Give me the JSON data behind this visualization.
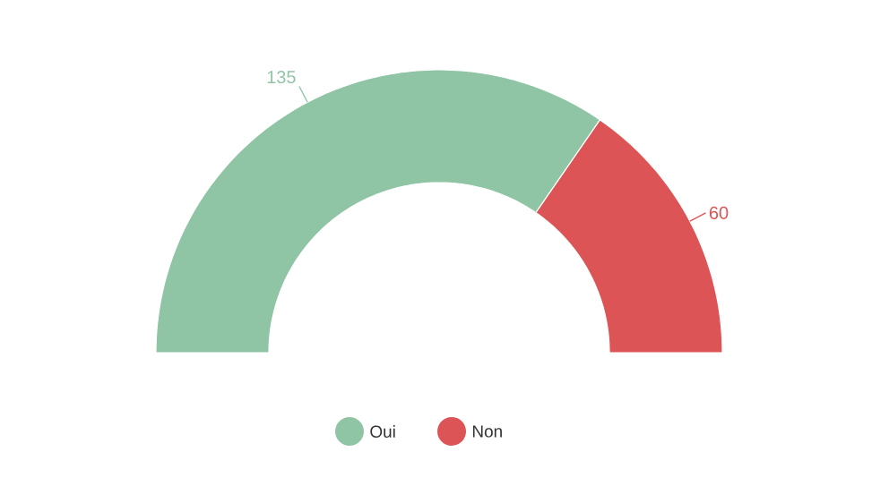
{
  "chart_data": {
    "type": "donut",
    "categories": [
      "Oui",
      "Non"
    ],
    "values": [
      135,
      60
    ],
    "colors": [
      "#8fc4a5",
      "#dd5456"
    ],
    "data_labels": true,
    "legend": "bottom"
  }
}
